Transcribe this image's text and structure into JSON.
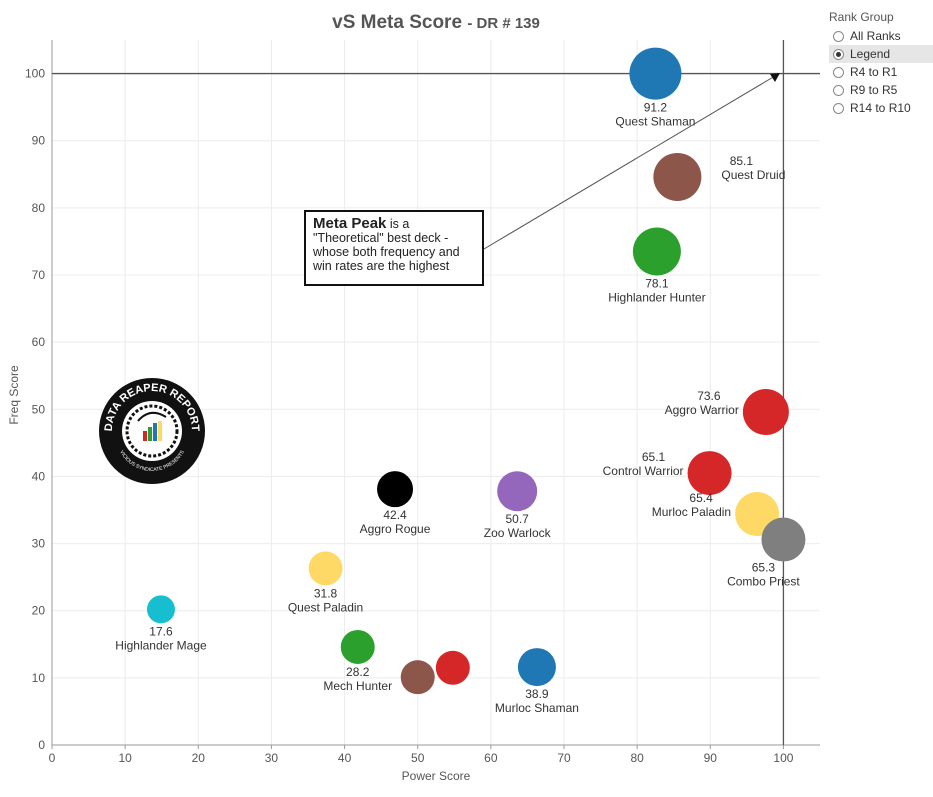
{
  "chart_data": {
    "type": "scatter",
    "title": "vS Meta Score",
    "subtitle": "DR # 139",
    "xlabel": "Power Score",
    "ylabel": "Freq Score",
    "xlim": [
      0,
      105
    ],
    "ylim": [
      0,
      105
    ],
    "x_ticks": [
      0,
      10,
      20,
      30,
      40,
      50,
      60,
      70,
      80,
      90,
      100
    ],
    "y_ticks": [
      0,
      10,
      20,
      30,
      40,
      50,
      60,
      70,
      80,
      90,
      100
    ],
    "grid": true,
    "reference_lines": {
      "x": 100,
      "y": 100
    },
    "points": [
      {
        "label": "Quest Shaman",
        "score": "91.2",
        "x": 82.5,
        "y": 100,
        "color": "#1f77b4",
        "size": 26
      },
      {
        "label": "Quest Druid",
        "score": "85.1",
        "x": 85.5,
        "y": 84.6,
        "color": "#8c564b",
        "size": 24
      },
      {
        "label": "Highlander Hunter",
        "score": "78.1",
        "x": 82.7,
        "y": 73.5,
        "color": "#2ca02c",
        "size": 24
      },
      {
        "label": "Aggro Warrior",
        "score": "73.6",
        "x": 97.6,
        "y": 49.6,
        "color": "#d62728",
        "size": 23
      },
      {
        "label": "Control Warrior",
        "score": "65.1",
        "x": 89.9,
        "y": 40.5,
        "color": "#d62728",
        "size": 22
      },
      {
        "label": "Murloc Paladin",
        "score": "65.4",
        "x": 96.4,
        "y": 34.4,
        "color": "#ffd966",
        "size": 22
      },
      {
        "label": "Combo Priest",
        "score": "65.3",
        "x": 100,
        "y": 30.6,
        "color": "#7f7f7f",
        "size": 22
      },
      {
        "label": "Aggro Rogue",
        "score": "42.4",
        "x": 46.9,
        "y": 38.1,
        "color": "#000000",
        "size": 18
      },
      {
        "label": "Zoo Warlock",
        "score": "50.7",
        "x": 63.6,
        "y": 37.8,
        "color": "#9467bd",
        "size": 20
      },
      {
        "label": "Quest Paladin",
        "score": "31.8",
        "x": 37.4,
        "y": 26.3,
        "color": "#ffd966",
        "size": 17
      },
      {
        "label": "Highlander Mage",
        "score": "17.6",
        "x": 14.9,
        "y": 20.2,
        "color": "#17becf",
        "size": 14
      },
      {
        "label": "Mech Hunter",
        "score": "28.2",
        "x": 41.8,
        "y": 14.6,
        "color": "#2ca02c",
        "size": 17
      },
      {
        "label": "",
        "score": "",
        "x": 50.0,
        "y": 10.1,
        "color": "#8c564b",
        "size": 17
      },
      {
        "label": "",
        "score": "",
        "x": 54.8,
        "y": 11.5,
        "color": "#d62728",
        "size": 17
      },
      {
        "label": "Murloc Shaman",
        "score": "38.9",
        "x": 66.3,
        "y": 11.6,
        "color": "#1f77b4",
        "size": 19
      }
    ]
  },
  "annotation": {
    "bold": "Meta Peak",
    "text": " is a \"Theoretical\" best deck - whose both frequency and win rates are the highest"
  },
  "logo": {
    "text_top": "DATA REAPER REPORT",
    "text_bottom": "VICIOUS SYNDICATE PRESENTS"
  },
  "legend": {
    "title": "Rank Group",
    "options": [
      "All Ranks",
      "Legend",
      "R4 to R1",
      "R9 to R5",
      "R14 to R10"
    ],
    "selected": "Legend"
  }
}
